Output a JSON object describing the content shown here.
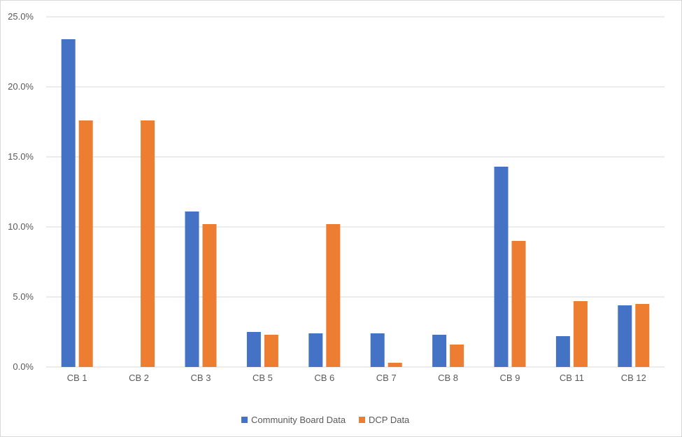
{
  "chart_data": {
    "type": "bar",
    "title": "",
    "xlabel": "",
    "ylabel": "",
    "categories": [
      "CB 1",
      "CB 2",
      "CB 3",
      "CB 5",
      "CB 6",
      "CB 7",
      "CB 8",
      "CB 9",
      "CB 11",
      "CB 12"
    ],
    "series": [
      {
        "name": "Community Board Data",
        "color": "#4472C4",
        "values": [
          23.4,
          0.0,
          11.1,
          2.5,
          2.4,
          2.4,
          2.3,
          14.3,
          2.2,
          4.4
        ]
      },
      {
        "name": "DCP Data",
        "color": "#ED7D31",
        "values": [
          17.6,
          17.6,
          10.2,
          2.3,
          10.2,
          0.3,
          1.6,
          9.0,
          4.7,
          4.5
        ]
      }
    ],
    "yticks": [
      "0.0%",
      "5.0%",
      "10.0%",
      "15.0%",
      "20.0%",
      "25.0%"
    ],
    "ylim": [
      0,
      25
    ],
    "grid": true,
    "legend_position": "bottom"
  }
}
